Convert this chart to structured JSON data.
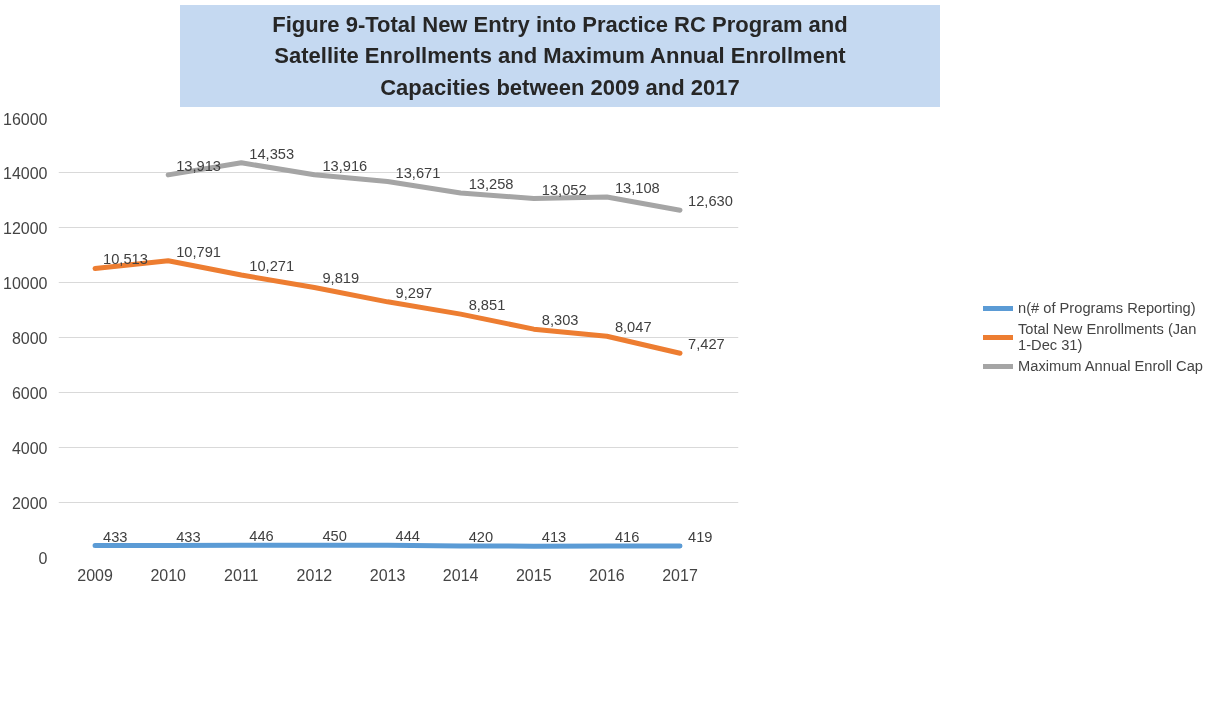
{
  "chart_data": {
    "type": "line",
    "title": "Figure 9-Total New Entry into Practice RC Program and Satellite Enrollments and Maximum Annual Enrollment Capacities between 2009 and 2017",
    "categories": [
      "2009",
      "2010",
      "2011",
      "2012",
      "2013",
      "2014",
      "2015",
      "2016",
      "2017"
    ],
    "series": [
      {
        "name": "n(# of Programs Reporting)",
        "color": "#5b9bd5",
        "values": [
          433,
          433,
          446,
          450,
          444,
          420,
          413,
          416,
          419
        ],
        "value_labels": [
          "433",
          "433",
          "446",
          "450",
          "444",
          "420",
          "413",
          "416",
          "419"
        ]
      },
      {
        "name": "Total New Enrollments (Jan 1-Dec 31)",
        "color": "#ed7d31",
        "values": [
          10513,
          10791,
          10271,
          9819,
          9297,
          8851,
          8303,
          8047,
          7427
        ],
        "value_labels": [
          "10,513",
          "10,791",
          "10,271",
          "9,819",
          "9,297",
          "8,851",
          "8,303",
          "8,047",
          "7,427"
        ]
      },
      {
        "name": "Maximum Annual Enroll Cap",
        "color": "#a5a5a5",
        "values": [
          null,
          13913,
          14353,
          13916,
          13671,
          13258,
          13052,
          13108,
          12630
        ],
        "value_labels": [
          null,
          "13,913",
          "14,353",
          "13,916",
          "13,671",
          "13,258",
          "13,052",
          "13,108",
          "12,630"
        ]
      }
    ],
    "ylim": [
      0,
      16000
    ],
    "yticks": [
      0,
      2000,
      4000,
      6000,
      8000,
      10000,
      12000,
      14000,
      16000
    ],
    "grid": "y",
    "legend": "right",
    "line_style": "solid",
    "marker": "none"
  }
}
